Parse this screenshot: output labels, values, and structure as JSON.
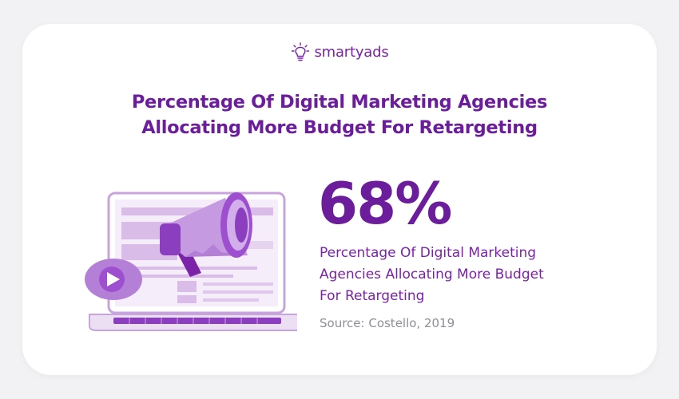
{
  "brand": {
    "name": "smartyads"
  },
  "title": {
    "line1": "Percentage Of Digital Marketing Agencies",
    "line2": "Allocating More Budget For Retargeting"
  },
  "stat": {
    "value": "68%"
  },
  "description": {
    "line1": "Percentage Of Digital Marketing",
    "line2": "Agencies Allocating More Budget",
    "line3": "For Retargeting"
  },
  "source": "Source: Costello, 2019",
  "colors": {
    "accent": "#6c1d9c",
    "brand": "#7b22a8",
    "illustration_light": "#e6d4ef",
    "illustration_mid": "#c9a3dd",
    "illustration_dark": "#8b3fbf",
    "source_text": "#8e8e96"
  },
  "icons": {
    "brand": "lightbulb-icon",
    "illustration": "laptop-megaphone-illustration",
    "play": "play-icon"
  }
}
